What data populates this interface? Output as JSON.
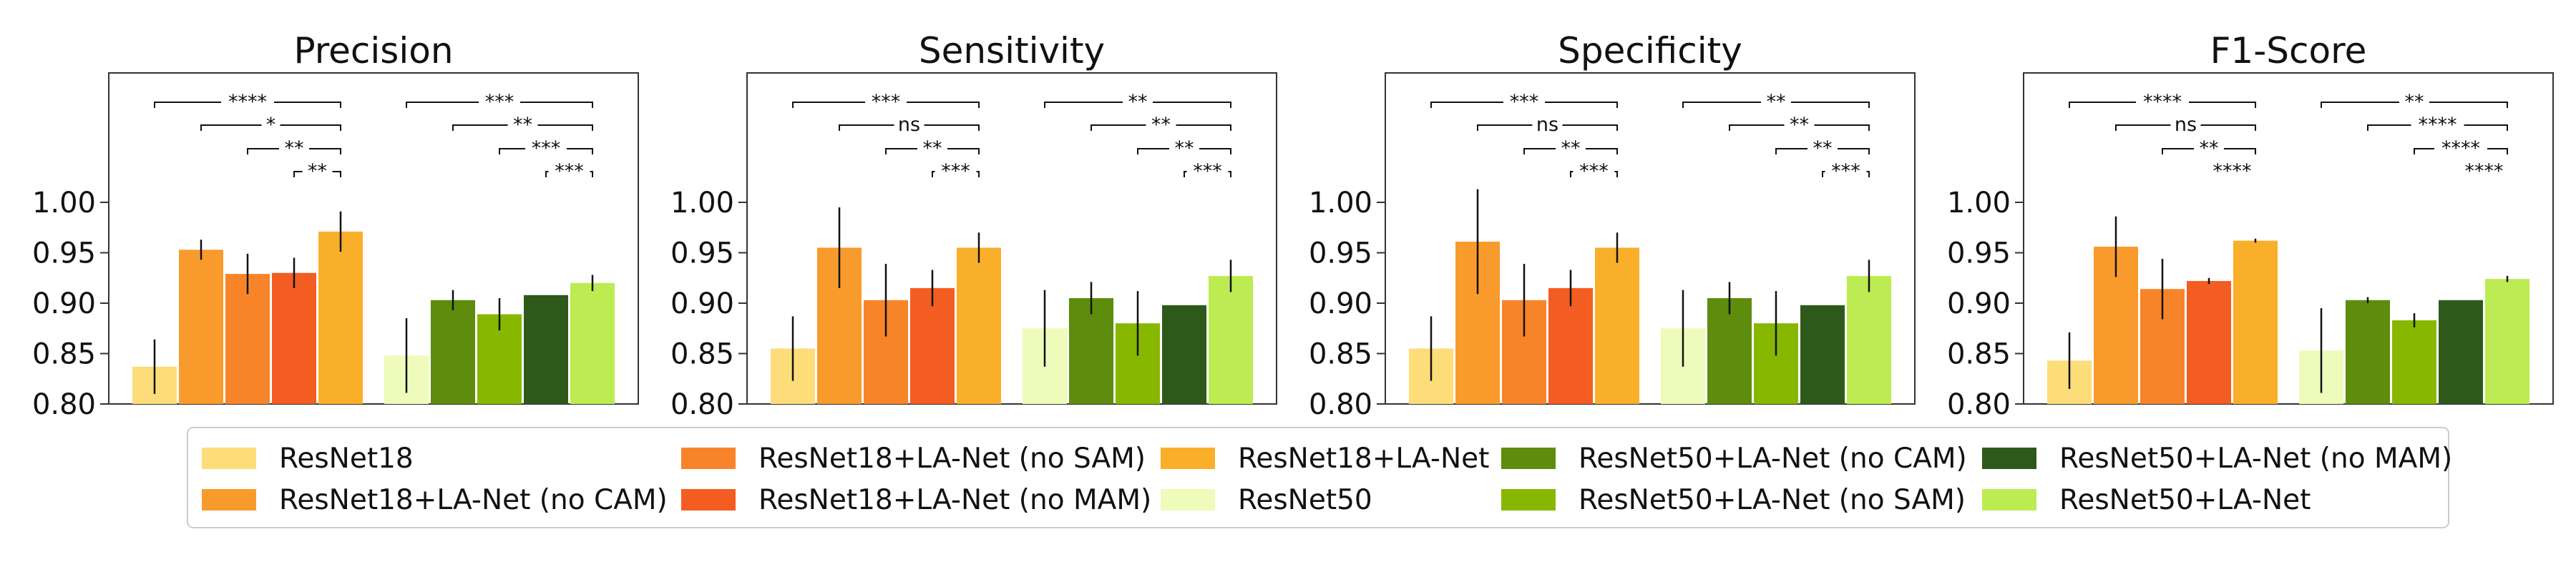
{
  "chart_data": {
    "type": "bar",
    "ylim": [
      0.8,
      1.0
    ],
    "yticks": [
      0.8,
      0.85,
      0.9,
      0.95,
      1.0
    ],
    "ytick_labels": [
      "0.80",
      "0.85",
      "0.90",
      "0.95",
      "1.00"
    ],
    "legend_position": "bottom",
    "legend": [
      {
        "name": "ResNet18",
        "color": "#FDDD7A"
      },
      {
        "name": "ResNet18+LA-Net (no CAM)",
        "color": "#F99B2C"
      },
      {
        "name": "ResNet18+LA-Net (no SAM)",
        "color": "#F8842A"
      },
      {
        "name": "ResNet18+LA-Net (no MAM)",
        "color": "#F35D22"
      },
      {
        "name": "ResNet18+LA-Net",
        "color": "#F9AF2A"
      },
      {
        "name": "ResNet50",
        "color": "#EEFBBA"
      },
      {
        "name": "ResNet50+LA-Net (no CAM)",
        "color": "#5E8C0C"
      },
      {
        "name": "ResNet50+LA-Net (no SAM)",
        "color": "#88B700"
      },
      {
        "name": "ResNet50+LA-Net (no MAM)",
        "color": "#2D5A1B"
      },
      {
        "name": "ResNet50+LA-Net",
        "color": "#BDEB52"
      }
    ],
    "panels": [
      {
        "title": "Precision",
        "values": [
          0.837,
          0.953,
          0.929,
          0.93,
          0.971,
          0.848,
          0.903,
          0.889,
          0.908,
          0.92
        ],
        "errors": [
          0.027,
          0.01,
          0.02,
          0.015,
          0.02,
          0.037,
          0.01,
          0.016,
          0.0,
          0.008
        ],
        "significance": [
          [
            "****",
            "*",
            "**",
            "**"
          ],
          [
            "***",
            "**",
            "***",
            "***"
          ]
        ]
      },
      {
        "title": "Sensitivity",
        "values": [
          0.855,
          0.955,
          0.903,
          0.915,
          0.955,
          0.875,
          0.905,
          0.88,
          0.898,
          0.927
        ],
        "errors": [
          0.032,
          0.04,
          0.036,
          0.018,
          0.015,
          0.038,
          0.016,
          0.032,
          0.0,
          0.016
        ],
        "significance": [
          [
            "***",
            "ns",
            "**",
            "***"
          ],
          [
            "**",
            "**",
            "**",
            "***"
          ]
        ]
      },
      {
        "title": "Specificity",
        "values": [
          0.855,
          0.961,
          0.903,
          0.915,
          0.955,
          0.875,
          0.905,
          0.88,
          0.898,
          0.927
        ],
        "errors": [
          0.032,
          0.052,
          0.036,
          0.018,
          0.015,
          0.038,
          0.016,
          0.032,
          0.0,
          0.016
        ],
        "significance": [
          [
            "***",
            "ns",
            "**",
            "***"
          ],
          [
            "**",
            "**",
            "**",
            "***"
          ]
        ]
      },
      {
        "title": "F1-Score",
        "values": [
          0.843,
          0.956,
          0.914,
          0.922,
          0.962,
          0.853,
          0.903,
          0.883,
          0.903,
          0.924
        ],
        "errors": [
          0.028,
          0.03,
          0.03,
          0.003,
          0.002,
          0.042,
          0.003,
          0.007,
          0.0,
          0.003
        ],
        "significance": [
          [
            "****",
            "ns",
            "**",
            "****"
          ],
          [
            "**",
            "****",
            "****",
            "****"
          ]
        ]
      }
    ]
  }
}
